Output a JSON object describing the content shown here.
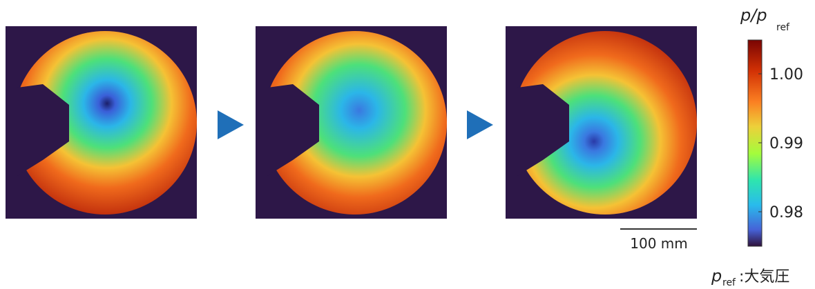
{
  "colorbar": {
    "label": {
      "symbol": "p/p",
      "subscript": "ref"
    },
    "ticks": [
      "1.00",
      "0.99",
      "0.98"
    ]
  },
  "scale_bar": {
    "label": "100 mm"
  },
  "footnote": {
    "symbol": "p",
    "subscript": "ref",
    "text": ":大気圧"
  }
}
